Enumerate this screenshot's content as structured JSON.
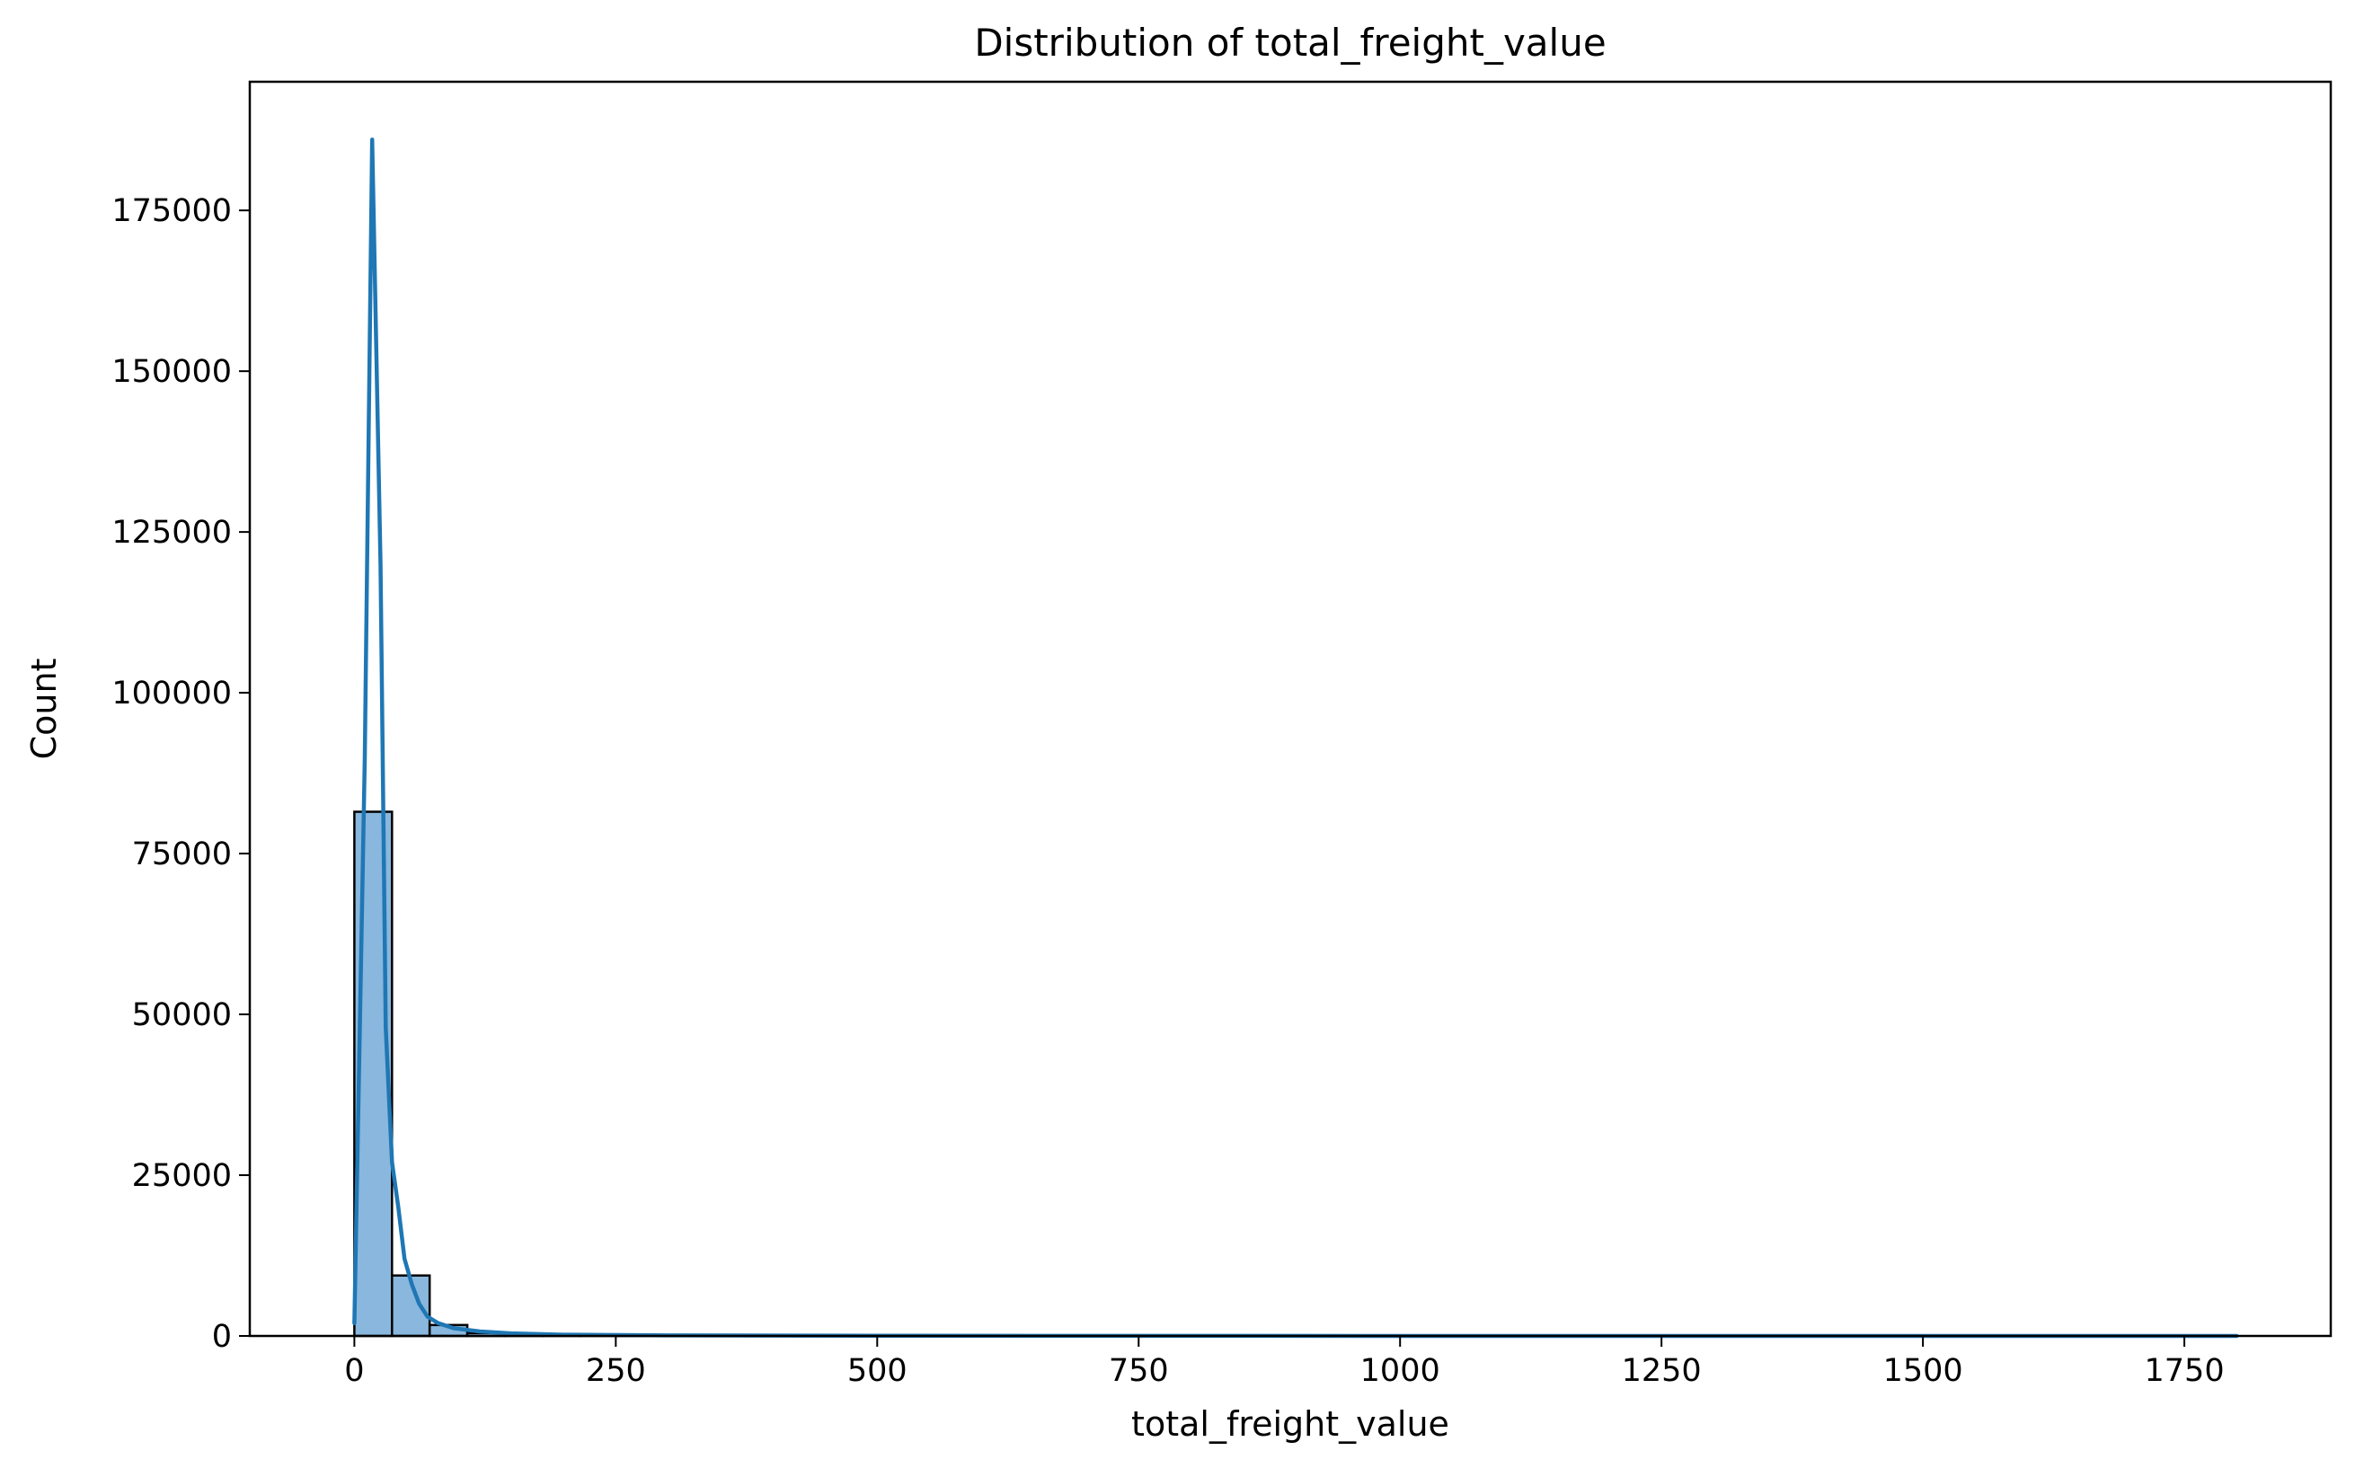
{
  "chart_data": {
    "type": "bar",
    "title": "Distribution of total_freight_value",
    "xlabel": "total_freight_value",
    "ylabel": "Count",
    "xlim": [
      -100,
      1890
    ],
    "ylim": [
      0,
      195000
    ],
    "xticks": [
      0,
      250,
      500,
      750,
      1000,
      1250,
      1500,
      1750
    ],
    "yticks": [
      0,
      25000,
      50000,
      75000,
      100000,
      125000,
      150000,
      175000
    ],
    "grid": false,
    "legend": "none",
    "bin_width": 36,
    "bins": [
      {
        "x0": 0,
        "x1": 36,
        "count": 81500
      },
      {
        "x0": 36,
        "x1": 72,
        "count": 9400
      },
      {
        "x0": 72,
        "x1": 108,
        "count": 1700
      },
      {
        "x0": 108,
        "x1": 144,
        "count": 450
      },
      {
        "x0": 144,
        "x1": 180,
        "count": 200
      },
      {
        "x0": 180,
        "x1": 216,
        "count": 100
      },
      {
        "x0": 216,
        "x1": 252,
        "count": 60
      },
      {
        "x0": 252,
        "x1": 288,
        "count": 40
      },
      {
        "x0": 288,
        "x1": 324,
        "count": 25
      },
      {
        "x0": 324,
        "x1": 360,
        "count": 15
      },
      {
        "x0": 360,
        "x1": 396,
        "count": 10
      },
      {
        "x0": 396,
        "x1": 432,
        "count": 8
      },
      {
        "x0": 432,
        "x1": 468,
        "count": 5
      },
      {
        "x0": 468,
        "x1": 504,
        "count": 4
      },
      {
        "x0": 504,
        "x1": 540,
        "count": 3
      },
      {
        "x0": 540,
        "x1": 576,
        "count": 2
      },
      {
        "x0": 576,
        "x1": 612,
        "count": 2
      },
      {
        "x0": 612,
        "x1": 648,
        "count": 1
      },
      {
        "x0": 648,
        "x1": 684,
        "count": 1
      },
      {
        "x0": 684,
        "x1": 720,
        "count": 1
      }
    ],
    "kde": {
      "x": [
        0,
        10,
        17,
        25,
        30,
        36,
        42,
        48,
        55,
        62,
        70,
        80,
        95,
        120,
        150,
        200,
        300,
        500,
        800,
        1200,
        1600,
        1800
      ],
      "y": [
        2000,
        90000,
        186000,
        120000,
        48000,
        27000,
        20000,
        12000,
        8000,
        5000,
        3000,
        2000,
        1200,
        700,
        400,
        200,
        80,
        30,
        10,
        5,
        2,
        0
      ]
    },
    "colors": {
      "bar_fill": "#89b7dd",
      "bar_edge": "#000000",
      "kde_line": "#1f77b4",
      "axes": "#000000",
      "background": "#ffffff"
    }
  }
}
